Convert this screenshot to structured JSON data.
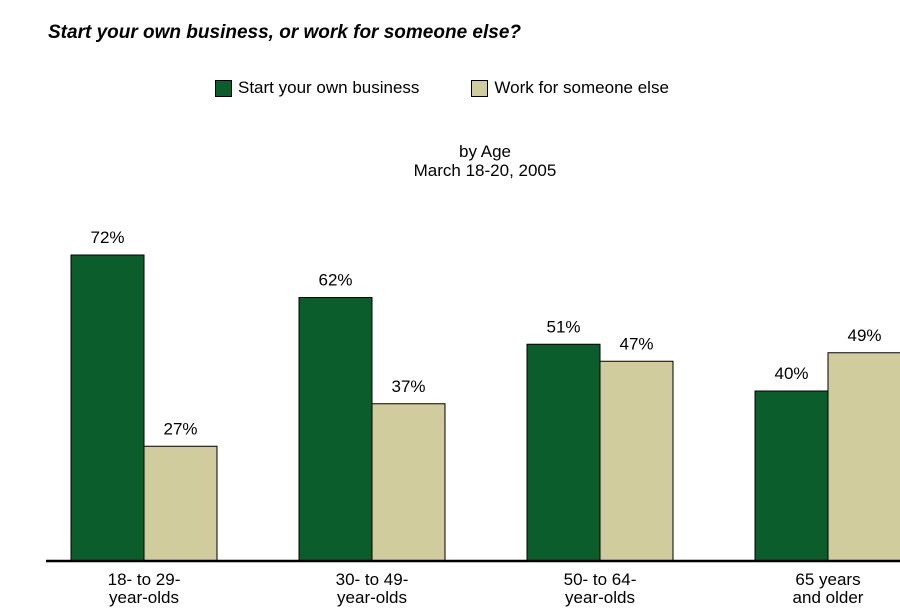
{
  "chart_data": {
    "type": "bar",
    "title": "Start your own business, or work for someone else?",
    "subtitle_lines": [
      "by Age",
      "March 18-20, 2005"
    ],
    "categories": [
      [
        "18- to 29-",
        "year-olds"
      ],
      [
        "30- to 49-",
        "year-olds"
      ],
      [
        "50- to 64-",
        "year-olds"
      ],
      [
        "65 years",
        "and older"
      ]
    ],
    "series": [
      {
        "name": "Start your own business",
        "color": "#0b5e2b",
        "values": [
          72,
          62,
          51,
          40
        ],
        "labels": [
          "72%",
          "62%",
          "51%",
          "40%"
        ]
      },
      {
        "name": "Work for someone else",
        "color": "#d1cc9d",
        "values": [
          27,
          37,
          47,
          49
        ],
        "labels": [
          "27%",
          "37%",
          "47%",
          "49%"
        ]
      }
    ],
    "ylim": [
      0,
      100
    ],
    "grid": false,
    "legend_position": "top"
  }
}
